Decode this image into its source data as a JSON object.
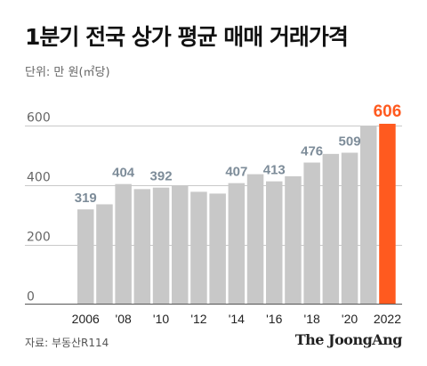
{
  "header": {
    "title": "1분기 전국 상가 평균 매매 거래가격",
    "unit": "단위: 만 원(㎡당)"
  },
  "footer": {
    "source": "자료: 부동산R114",
    "brand": "The JoongAng"
  },
  "colors": {
    "bar": "#c8c8c8",
    "highlight": "#ff5a1f",
    "label": "#7d8c99",
    "grid": "#c9c9c9"
  },
  "chart_data": {
    "type": "bar",
    "categories": [
      "2006",
      "2007",
      "2008",
      "2009",
      "2010",
      "2011",
      "2012",
      "2013",
      "2014",
      "2015",
      "2016",
      "2017",
      "2018",
      "2019",
      "2020",
      "2021",
      "2022"
    ],
    "values": [
      319,
      336,
      404,
      387,
      392,
      400,
      378,
      372,
      407,
      437,
      413,
      430,
      476,
      505,
      509,
      597,
      606
    ],
    "data_labels": {
      "2006": "319",
      "2008": "404",
      "2010": "392",
      "2014": "407",
      "2016": "413",
      "2018": "476",
      "2020": "509",
      "2022": "606"
    },
    "x_tick_labels": {
      "2006": "2006",
      "2008": "'08",
      "2010": "'10",
      "2012": "'12",
      "2014": "'14",
      "2016": "'16",
      "2018": "'18",
      "2020": "'20",
      "2022": "2022"
    },
    "y_ticks": [
      "0",
      "200",
      "400",
      "600"
    ],
    "ylim": [
      0,
      650
    ],
    "highlight_category": "2022",
    "grid": true
  }
}
